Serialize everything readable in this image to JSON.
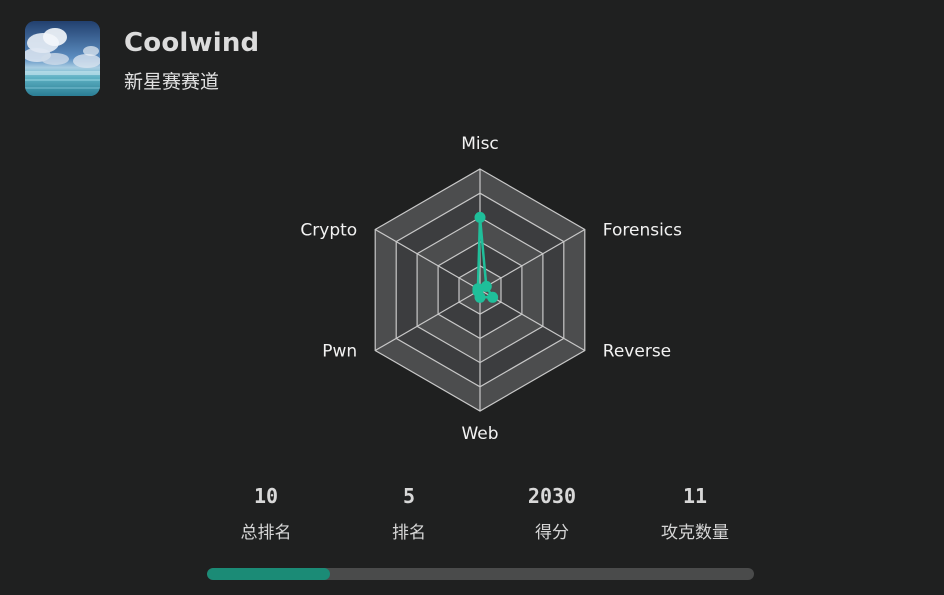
{
  "profile": {
    "username": "Coolwind",
    "track": "新星赛赛道",
    "avatar_icon": "sky-clouds-ocean-avatar"
  },
  "radar": {
    "axes": [
      "Misc",
      "Forensics",
      "Reverse",
      "Web",
      "Pwn",
      "Crypto"
    ],
    "levels": 5,
    "max": 5,
    "values": {
      "Misc": 3,
      "Forensics": 0.3,
      "Reverse": 0.6,
      "Web": 0.3,
      "Pwn": 0.1,
      "Crypto": 0.1
    },
    "colors": {
      "series": "#1fbf9a",
      "grid_line": "#c8c8c8",
      "ring_dark": "#3c3d3f",
      "ring_light": "#4c4d4e"
    }
  },
  "stats": [
    {
      "value": "10",
      "label": "总排名"
    },
    {
      "value": "5",
      "label": "排名"
    },
    {
      "value": "2030",
      "label": "得分"
    },
    {
      "value": "11",
      "label": "攻克数量"
    }
  ],
  "progress": {
    "fraction": 0.225,
    "color": "#1b8b76"
  }
}
